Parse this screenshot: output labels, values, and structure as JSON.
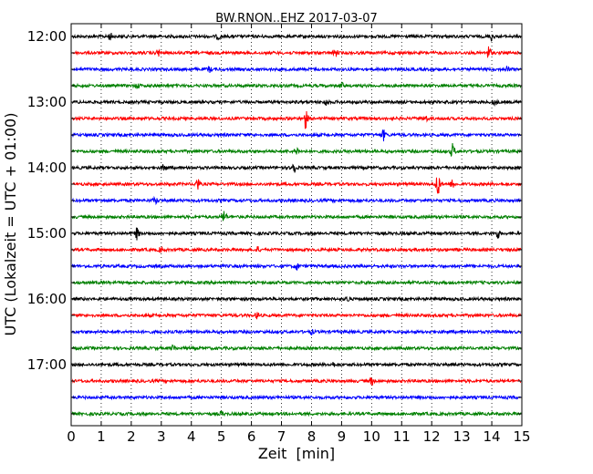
{
  "chart_data": {
    "type": "line",
    "title": "BW.RNON..EHZ 2017-03-07",
    "xlabel": "Zeit  [min]",
    "ylabel": "UTC (Lokalzeit = UTC + 01:00)",
    "xlim": [
      0,
      15
    ],
    "x_ticks": [
      "0",
      "1",
      "2",
      "3",
      "4",
      "5",
      "6",
      "7",
      "8",
      "9",
      "10",
      "11",
      "12",
      "13",
      "14",
      "15"
    ],
    "y_tick_labels": [
      "12:00",
      "13:00",
      "14:00",
      "15:00",
      "16:00",
      "17:00"
    ],
    "grid": "vertical dotted",
    "trace_colors": [
      "#000000",
      "#ff0000",
      "#0000ff",
      "#008000"
    ],
    "series": [
      {
        "start": "12:00",
        "events": [
          [
            1.3,
            0.5
          ],
          [
            4.9,
            0.4
          ],
          [
            14.0,
            0.6
          ]
        ]
      },
      {
        "start": "12:15",
        "events": [
          [
            2.9,
            0.5
          ],
          [
            8.8,
            0.6
          ],
          [
            13.9,
            1.0
          ]
        ]
      },
      {
        "start": "12:30",
        "events": [
          [
            4.6,
            0.4
          ],
          [
            14.5,
            0.4
          ]
        ]
      },
      {
        "start": "12:45",
        "events": [
          [
            2.2,
            0.4
          ],
          [
            9.0,
            0.4
          ]
        ]
      },
      {
        "start": "13:00",
        "events": [
          [
            8.5,
            0.4
          ],
          [
            14.1,
            0.5
          ]
        ]
      },
      {
        "start": "13:15",
        "events": [
          [
            7.8,
            1.5
          ],
          [
            11.8,
            0.4
          ]
        ]
      },
      {
        "start": "13:30",
        "events": [
          [
            10.4,
            0.8
          ]
        ]
      },
      {
        "start": "13:45",
        "events": [
          [
            7.5,
            0.6
          ],
          [
            12.7,
            1.2
          ]
        ]
      },
      {
        "start": "14:00",
        "events": [
          [
            3.1,
            0.6
          ],
          [
            7.4,
            1.2
          ]
        ]
      },
      {
        "start": "14:15",
        "events": [
          [
            4.2,
            1.0
          ],
          [
            12.2,
            2.0
          ],
          [
            12.7,
            0.8
          ]
        ]
      },
      {
        "start": "14:30",
        "events": [
          [
            2.8,
            0.5
          ]
        ]
      },
      {
        "start": "14:45",
        "events": [
          [
            5.1,
            1.0
          ]
        ]
      },
      {
        "start": "15:00",
        "events": [
          [
            2.2,
            0.9
          ],
          [
            14.2,
            0.7
          ]
        ]
      },
      {
        "start": "15:15",
        "events": [
          [
            3.0,
            0.4
          ],
          [
            6.2,
            0.4
          ]
        ]
      },
      {
        "start": "15:30",
        "events": [
          [
            7.5,
            0.7
          ]
        ]
      },
      {
        "start": "15:45",
        "events": []
      },
      {
        "start": "16:00",
        "events": [
          [
            9.2,
            0.4
          ]
        ]
      },
      {
        "start": "16:15",
        "events": [
          [
            6.2,
            0.5
          ]
        ]
      },
      {
        "start": "16:30",
        "events": [
          [
            8.0,
            0.3
          ]
        ]
      },
      {
        "start": "16:45",
        "events": [
          [
            3.4,
            0.4
          ]
        ]
      },
      {
        "start": "17:00",
        "events": [
          [
            8.7,
            0.4
          ]
        ]
      },
      {
        "start": "17:15",
        "events": [
          [
            10.0,
            0.6
          ]
        ]
      },
      {
        "start": "17:30",
        "events": []
      },
      {
        "start": "17:45",
        "events": [
          [
            5.0,
            0.3
          ]
        ]
      }
    ]
  }
}
